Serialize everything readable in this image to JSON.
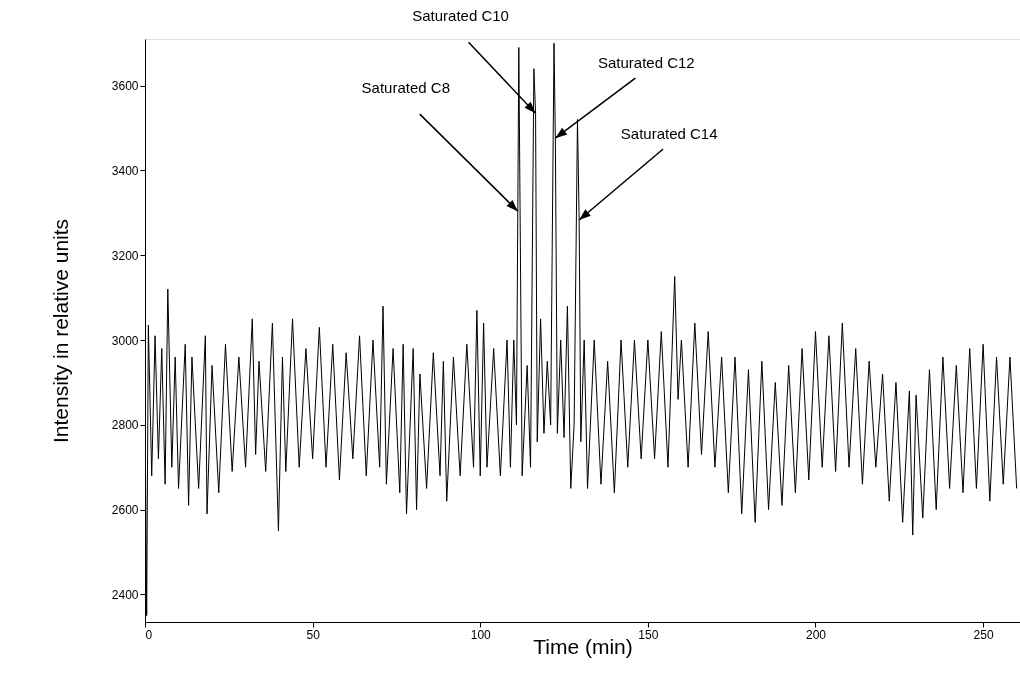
{
  "chart_data": {
    "type": "line",
    "xlabel": "Time (min)",
    "ylabel": "Intensity in relative units",
    "xlim": [
      0,
      261
    ],
    "ylim": [
      2335,
      3710
    ],
    "xticks": [
      0,
      50,
      100,
      150,
      200,
      250
    ],
    "yticks": [
      2400,
      2600,
      2800,
      3000,
      3200,
      3400,
      3600
    ],
    "grid": false,
    "series": [
      {
        "color": "#000000",
        "x": [
          0,
          0.5,
          1,
          2,
          3,
          4,
          5,
          6,
          6.8,
          8,
          9,
          10,
          12,
          13,
          14,
          16,
          18,
          18.5,
          20,
          22,
          24,
          26,
          28,
          30,
          32,
          33,
          34,
          36,
          38,
          39.8,
          41,
          42,
          44,
          46,
          48,
          50,
          52,
          54,
          56,
          58,
          60,
          62,
          64,
          66,
          68,
          70,
          71,
          72,
          74,
          76,
          77,
          78,
          80,
          81,
          82,
          84,
          86,
          88,
          89,
          90,
          92,
          94,
          96,
          98,
          99,
          100,
          101,
          102,
          104,
          106,
          108,
          109,
          110,
          110.8,
          111.2,
          111.5,
          112.5,
          114,
          115,
          116,
          116.5,
          117,
          118,
          119,
          120,
          121,
          122,
          122.4,
          123,
          124,
          125,
          126,
          127,
          128,
          129,
          129.5,
          130,
          131,
          132,
          134,
          136,
          138,
          140,
          142,
          144,
          146,
          148,
          150,
          152,
          154,
          156,
          158,
          159,
          160,
          162,
          164,
          166,
          168,
          170,
          172,
          174,
          176,
          178,
          180,
          182,
          184,
          186,
          188,
          190,
          192,
          194,
          196,
          198,
          200,
          202,
          204,
          206,
          208,
          210,
          212,
          214,
          216,
          218,
          220,
          222,
          224,
          226,
          228,
          229,
          230,
          232,
          234,
          236,
          238,
          240,
          242,
          244,
          246,
          248,
          250,
          252,
          254,
          256,
          258,
          260
        ],
        "values": [
          2850,
          2350,
          3035,
          2680,
          3010,
          2720,
          2980,
          2660,
          3120,
          2700,
          2960,
          2650,
          2990,
          2610,
          2960,
          2650,
          3010,
          2590,
          2940,
          2640,
          2990,
          2690,
          2960,
          2700,
          3050,
          2730,
          2950,
          2690,
          3040,
          2550,
          2960,
          2690,
          3050,
          2700,
          2980,
          2720,
          3030,
          2700,
          2990,
          2670,
          2970,
          2720,
          3010,
          2680,
          3000,
          2700,
          3080,
          2660,
          2980,
          2640,
          2990,
          2590,
          2980,
          2600,
          2920,
          2650,
          2970,
          2680,
          2950,
          2620,
          2960,
          2680,
          2990,
          2700,
          3070,
          2680,
          3040,
          2700,
          2980,
          2680,
          3000,
          2700,
          3000,
          2800,
          3304,
          3690,
          2680,
          2940,
          2700,
          3640,
          3535,
          2760,
          3050,
          2780,
          2950,
          2800,
          3700,
          3476,
          2780,
          3000,
          2770,
          3080,
          2650,
          2800,
          3520,
          3283,
          2760,
          3000,
          2650,
          3000,
          2660,
          2950,
          2640,
          3000,
          2700,
          3000,
          2720,
          3000,
          2720,
          3020,
          2700,
          3150,
          2860,
          3000,
          2700,
          3040,
          2730,
          3020,
          2700,
          2960,
          2640,
          2960,
          2590,
          2930,
          2570,
          2950,
          2600,
          2900,
          2610,
          2940,
          2640,
          2980,
          2670,
          3020,
          2700,
          3010,
          2690,
          3040,
          2700,
          2980,
          2660,
          2950,
          2700,
          2920,
          2620,
          2900,
          2570,
          2880,
          2540,
          2870,
          2580,
          2930,
          2600,
          2960,
          2650,
          2940,
          2640,
          2980,
          2650,
          2990,
          2620,
          2960,
          2660,
          2960,
          2650
        ]
      }
    ],
    "annotations": [
      {
        "text": "Saturated C8",
        "x": 111.2,
        "y": 3304
      },
      {
        "text": "Saturated C10",
        "x": 116.5,
        "y": 3535
      },
      {
        "text": "Saturated C12",
        "x": 122.4,
        "y": 3476
      },
      {
        "text": "Saturated C14",
        "x": 129.5,
        "y": 3283
      }
    ]
  }
}
